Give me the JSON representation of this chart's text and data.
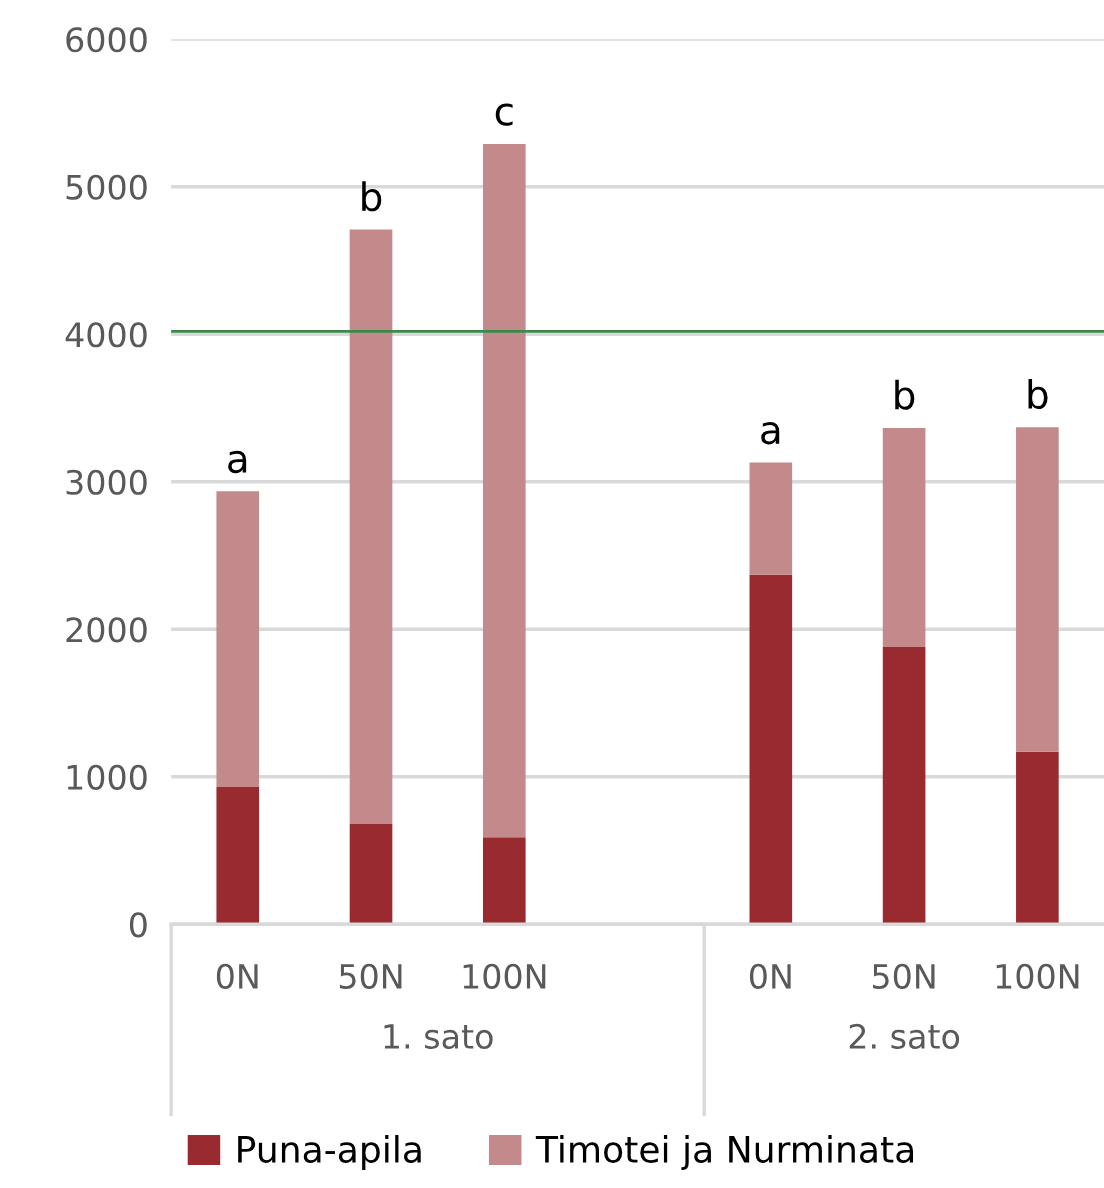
{
  "chart_data": {
    "type": "bar",
    "stacked": true,
    "categories": [
      "0N",
      "50N",
      "100N",
      null,
      "0N",
      "50N",
      "100N"
    ],
    "series": [
      {
        "name": "Puna-apila",
        "color": "#992b30",
        "values": [
          930,
          680,
          590,
          null,
          2370,
          1880,
          1170
        ]
      },
      {
        "name": "Timotei ja Nurminata",
        "color": "#c4898a",
        "values": [
          2005,
          4030,
          4700,
          null,
          760,
          1485,
          2200
        ]
      }
    ],
    "ylim": [
      0,
      6000
    ],
    "yticks": [
      0,
      1000,
      2000,
      3000,
      4000,
      5000,
      6000
    ],
    "grid": "y",
    "ref_lines": [
      {
        "axis": "y",
        "value": 4020,
        "color": "#3a8a4a"
      }
    ],
    "annotations": [
      "a",
      "b",
      "c",
      "a",
      "b",
      "b",
      "1. sato",
      "2. sato"
    ],
    "legend": "bottom"
  }
}
